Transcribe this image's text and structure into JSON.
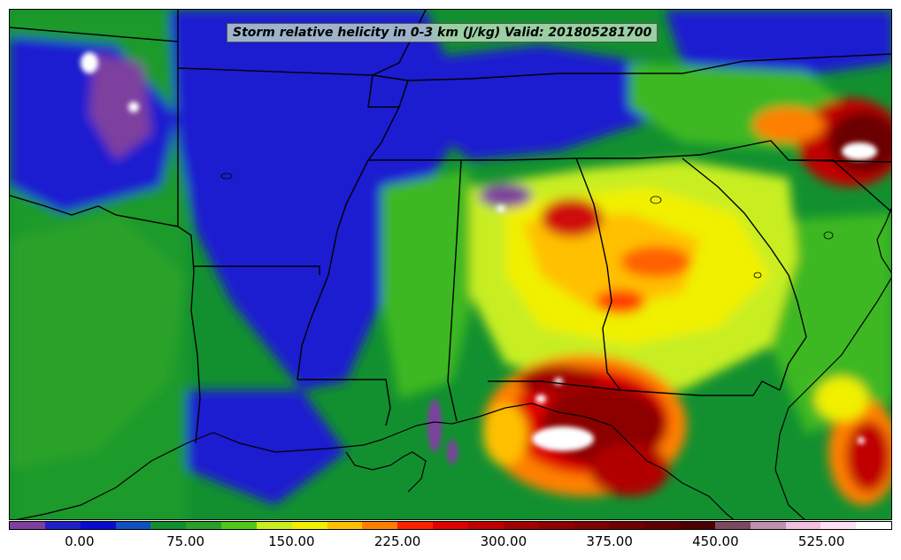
{
  "map": {
    "title": "Storm relative helicity in 0-3 km (J/kg) Valid: 201805281700",
    "variable": "Storm relative helicity in 0-3 km",
    "units": "J/kg",
    "valid_time": "201805281700"
  },
  "colorbar": {
    "colors": [
      "#7e3f9e",
      "#2020c8",
      "#0a0ad2",
      "#1050c0",
      "#0f8f30",
      "#2aa02a",
      "#50c818",
      "#c8ee20",
      "#f0f000",
      "#ffc000",
      "#ff8000",
      "#ff2000",
      "#e00000",
      "#c00000",
      "#a00000",
      "#900000",
      "#800000",
      "#700000",
      "#5e0000",
      "#4a0000",
      "#7a4a60",
      "#c090b0",
      "#f0c0e0",
      "#fde0f6",
      "#ffffff"
    ],
    "tick_labels": [
      "0.00",
      "75.00",
      "150.00",
      "225.00",
      "300.00",
      "375.00",
      "450.00",
      "525.00"
    ]
  },
  "legend_scale": {
    "min": -50,
    "max": 575,
    "ticks": [
      0,
      75,
      150,
      225,
      300,
      375,
      450,
      525
    ]
  }
}
